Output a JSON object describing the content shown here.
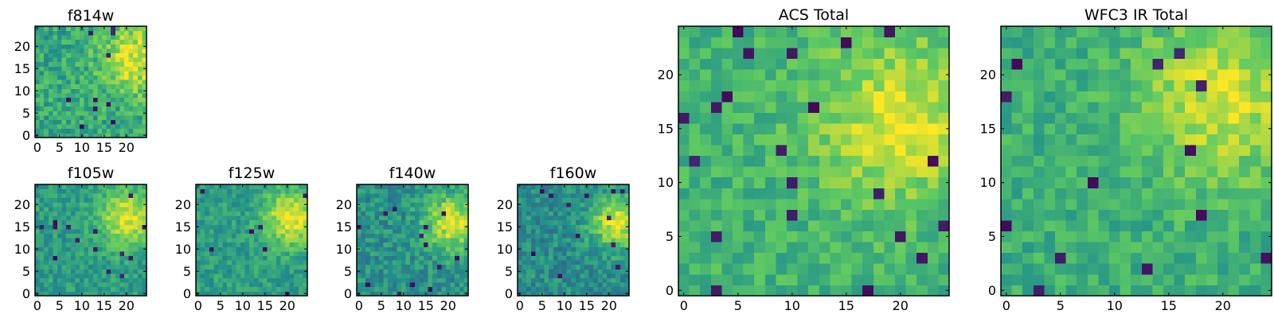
{
  "figure": {
    "title": ""
  },
  "colormap": {
    "name": "viridis",
    "vmin": 0,
    "vmax": 1,
    "stops": [
      "#440154",
      "#3b528b",
      "#21918c",
      "#5ec962",
      "#fde725"
    ]
  },
  "chart_data": [
    {
      "id": "f814w",
      "type": "heatmap",
      "title": "f814w",
      "grid_size": 25,
      "seed": 11,
      "bright_center": [
        22,
        17
      ],
      "base": 0.6,
      "bright_amp": 0.36,
      "bright_sigma": 5.5,
      "noise": 0.3,
      "dark_prob": 0.02,
      "xticks": [
        0,
        5,
        10,
        15,
        20
      ],
      "yticks": [
        0,
        5,
        10,
        15,
        20
      ],
      "xlim": [
        -0.5,
        24.5
      ],
      "ylim": [
        -0.5,
        24.5
      ]
    },
    {
      "id": "f105w",
      "type": "heatmap",
      "title": "f105w",
      "grid_size": 25,
      "seed": 23,
      "bright_center": [
        20,
        17
      ],
      "base": 0.55,
      "bright_amp": 0.4,
      "bright_sigma": 4.5,
      "noise": 0.22,
      "dark_prob": 0.015,
      "xticks": [
        0,
        5,
        10,
        15,
        20
      ],
      "yticks": [
        0,
        5,
        10,
        15,
        20
      ],
      "xlim": [
        -0.5,
        24.5
      ],
      "ylim": [
        -0.5,
        24.5
      ]
    },
    {
      "id": "f125w",
      "type": "heatmap",
      "title": "f125w",
      "grid_size": 25,
      "seed": 37,
      "bright_center": [
        21,
        17
      ],
      "base": 0.55,
      "bright_amp": 0.42,
      "bright_sigma": 4.5,
      "noise": 0.22,
      "dark_prob": 0.015,
      "xticks": [
        0,
        5,
        10,
        15,
        20
      ],
      "yticks": [
        0,
        5,
        10,
        15,
        20
      ],
      "xlim": [
        -0.5,
        24.5
      ],
      "ylim": [
        -0.5,
        24.5
      ]
    },
    {
      "id": "f140w",
      "type": "heatmap",
      "title": "f140w",
      "grid_size": 25,
      "seed": 41,
      "bright_center": [
        21,
        16
      ],
      "base": 0.5,
      "bright_amp": 0.45,
      "bright_sigma": 4.5,
      "noise": 0.26,
      "dark_prob": 0.02,
      "xticks": [
        0,
        5,
        10,
        15,
        20
      ],
      "yticks": [
        0,
        5,
        10,
        15,
        20
      ],
      "xlim": [
        -0.5,
        24.5
      ],
      "ylim": [
        -0.5,
        24.5
      ]
    },
    {
      "id": "f160w",
      "type": "heatmap",
      "title": "f160w",
      "grid_size": 25,
      "seed": 53,
      "bright_center": [
        22,
        16
      ],
      "base": 0.48,
      "bright_amp": 0.48,
      "bright_sigma": 4.2,
      "noise": 0.26,
      "dark_prob": 0.02,
      "xticks": [
        0,
        5,
        10,
        15,
        20
      ],
      "yticks": [
        0,
        5,
        10,
        15,
        20
      ],
      "xlim": [
        -0.5,
        24.5
      ],
      "ylim": [
        -0.5,
        24.5
      ]
    },
    {
      "id": "acs-total",
      "type": "heatmap",
      "title": "ACS Total",
      "grid_size": 25,
      "seed": 67,
      "bright_center": [
        20,
        16
      ],
      "base": 0.65,
      "bright_amp": 0.3,
      "bright_sigma": 5.5,
      "noise": 0.22,
      "dark_prob": 0.025,
      "xticks": [
        0,
        5,
        10,
        15,
        20
      ],
      "yticks": [
        0,
        5,
        10,
        15,
        20
      ],
      "xlim": [
        -0.5,
        24.5
      ],
      "ylim": [
        -0.5,
        24.5
      ]
    },
    {
      "id": "wfc3-ir-total",
      "type": "heatmap",
      "title": "WFC3 IR Total",
      "grid_size": 25,
      "seed": 79,
      "bright_center": [
        20,
        18
      ],
      "base": 0.63,
      "bright_amp": 0.3,
      "bright_sigma": 5.5,
      "noise": 0.22,
      "dark_prob": 0.025,
      "xticks": [
        0,
        5,
        10,
        15,
        20
      ],
      "yticks": [
        0,
        5,
        10,
        15,
        20
      ],
      "xlim": [
        -0.5,
        24.5
      ],
      "ylim": [
        -0.5,
        24.5
      ]
    }
  ]
}
